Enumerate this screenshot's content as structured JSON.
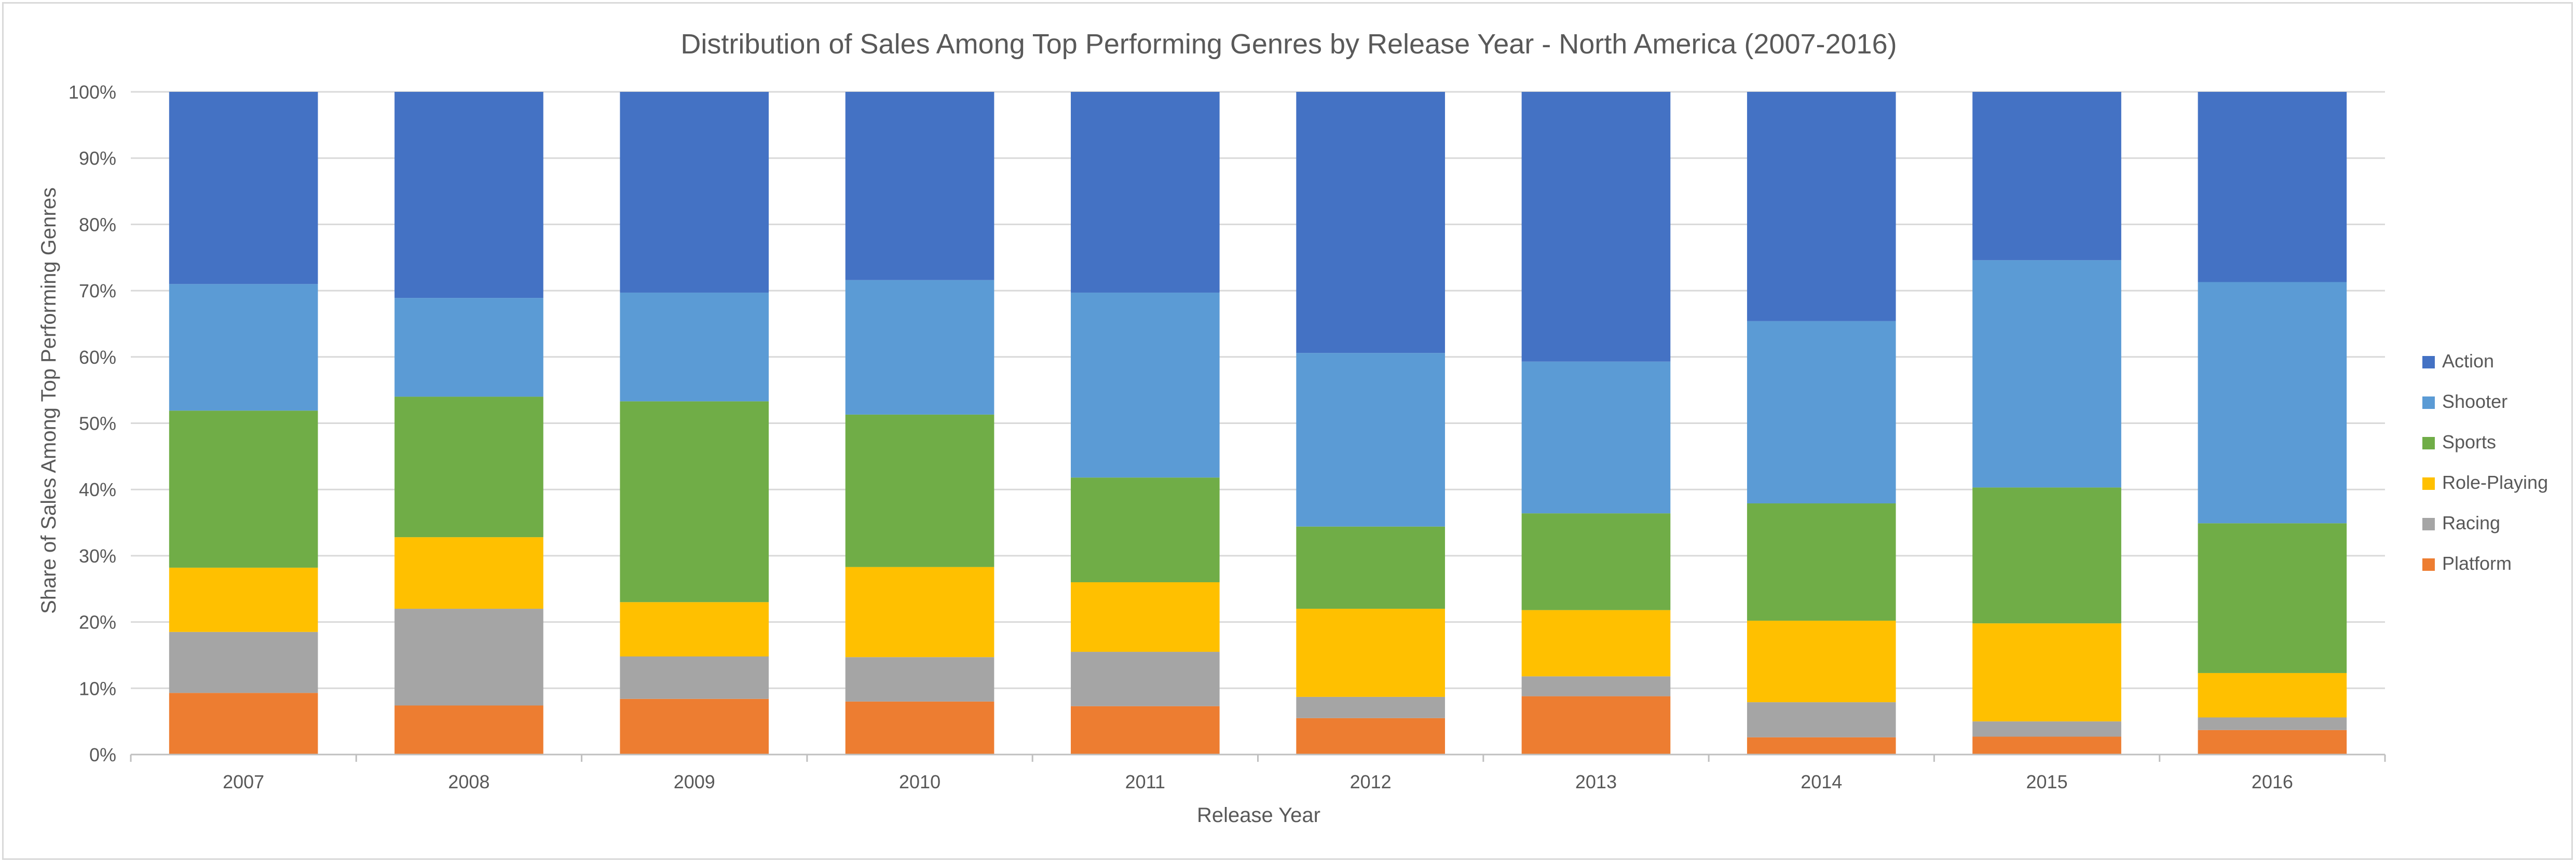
{
  "chart_data": {
    "type": "bar",
    "stacked": "percent",
    "title": "Distribution of Sales Among Top Performing Genres by Release Year - North America (2007-2016)",
    "xlabel": "Release Year",
    "ylabel": "Share of Sales Among Top Performing Genres",
    "ylim": [
      0,
      100
    ],
    "yticks": [
      "0%",
      "10%",
      "20%",
      "30%",
      "40%",
      "50%",
      "60%",
      "70%",
      "80%",
      "90%",
      "100%"
    ],
    "grid": true,
    "legend_position": "right",
    "categories": [
      "2007",
      "2008",
      "2009",
      "2010",
      "2011",
      "2012",
      "2013",
      "2014",
      "2015",
      "2016"
    ],
    "series": [
      {
        "name": "Platform",
        "color": "#ED7D31",
        "values": [
          9.3,
          7.4,
          8.4,
          8.0,
          7.3,
          5.5,
          8.8,
          2.6,
          2.7,
          3.7
        ]
      },
      {
        "name": "Racing",
        "color": "#A5A5A5",
        "values": [
          9.2,
          14.6,
          6.4,
          6.7,
          8.2,
          3.2,
          3.0,
          5.3,
          2.3,
          1.9
        ]
      },
      {
        "name": "Role-Playing",
        "color": "#FFC000",
        "values": [
          9.7,
          10.8,
          8.2,
          13.6,
          10.5,
          13.3,
          10.0,
          12.3,
          14.8,
          6.7
        ]
      },
      {
        "name": "Sports",
        "color": "#70AD47",
        "values": [
          23.7,
          21.2,
          30.3,
          23.0,
          15.8,
          12.4,
          14.6,
          17.7,
          20.5,
          22.6
        ]
      },
      {
        "name": "Shooter",
        "color": "#5B9BD5",
        "values": [
          19.1,
          14.9,
          16.4,
          20.3,
          27.9,
          26.2,
          22.9,
          27.5,
          34.3,
          36.4
        ]
      },
      {
        "name": "Action",
        "color": "#4472C4",
        "values": [
          29.0,
          31.1,
          30.3,
          28.4,
          30.3,
          39.4,
          40.7,
          34.6,
          25.4,
          28.7
        ]
      }
    ],
    "legend_order": [
      "Action",
      "Shooter",
      "Sports",
      "Role-Playing",
      "Racing",
      "Platform"
    ]
  }
}
